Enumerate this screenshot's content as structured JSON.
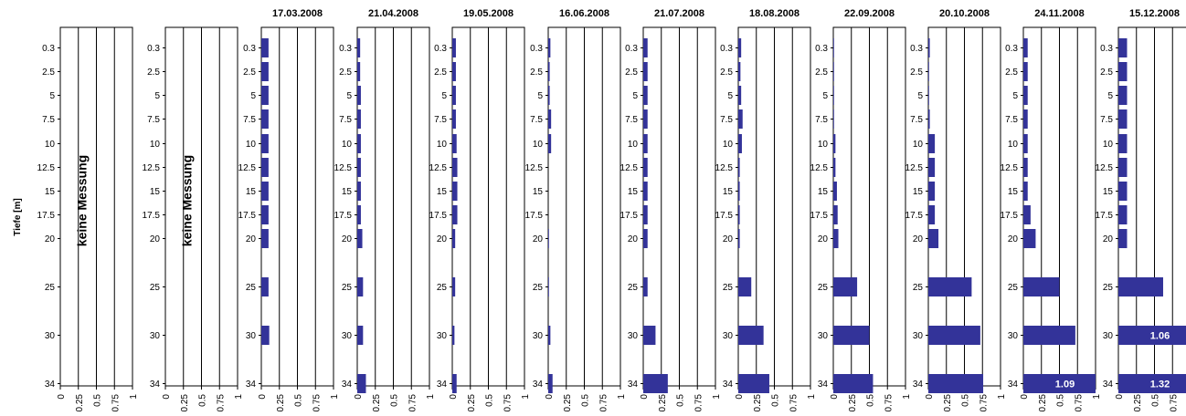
{
  "chart_data": {
    "type": "bar",
    "ylabel": "Tiefe [m]",
    "depths": [
      "0.3",
      "2.5",
      "5",
      "7.5",
      "10",
      "12.5",
      "15",
      "17.5",
      "20",
      "25",
      "30",
      "34"
    ],
    "xticks": [
      "0",
      "0.25",
      "0.5",
      "0.75",
      "1"
    ],
    "xlim": [
      0,
      1
    ],
    "bar_color": "#333399",
    "panels": [
      {
        "title": "",
        "no_data": "keine Messung",
        "values": []
      },
      {
        "title": "",
        "no_data": "keine Messung",
        "values": []
      },
      {
        "title": "17.03.2008",
        "values": [
          0.1,
          0.1,
          0.1,
          0.1,
          0.1,
          0.1,
          0.1,
          0.1,
          0.1,
          0.1,
          0.11,
          null
        ]
      },
      {
        "title": "21.04.2008",
        "values": [
          0.04,
          0.04,
          0.05,
          0.05,
          0.05,
          0.05,
          0.05,
          0.05,
          0.07,
          0.08,
          0.08,
          0.12
        ]
      },
      {
        "title": "19.05.2008",
        "values": [
          0.05,
          0.05,
          0.05,
          0.05,
          0.06,
          0.07,
          0.07,
          0.07,
          0.04,
          0.04,
          0.03,
          0.06
        ]
      },
      {
        "title": "16.06.2008",
        "values": [
          0.03,
          0.02,
          0.02,
          0.04,
          0.04,
          0.0,
          0.0,
          0.0,
          0.01,
          0.01,
          0.03,
          0.06
        ]
      },
      {
        "title": "21.07.2008",
        "values": [
          0.06,
          0.06,
          0.06,
          0.06,
          0.06,
          0.06,
          0.06,
          0.06,
          0.06,
          0.06,
          0.17,
          0.34
        ]
      },
      {
        "title": "18.08.2008",
        "values": [
          0.04,
          0.03,
          0.04,
          0.06,
          0.05,
          0.02,
          0.02,
          0.02,
          0.02,
          0.18,
          0.35,
          0.43
        ]
      },
      {
        "title": "22.09.2008",
        "values": [
          0.01,
          0.01,
          0.01,
          0.01,
          0.03,
          0.03,
          0.05,
          0.06,
          0.07,
          0.33,
          0.5,
          0.55
        ]
      },
      {
        "title": "20.10.2008",
        "values": [
          0.02,
          0.01,
          0.01,
          0.02,
          0.09,
          0.09,
          0.09,
          0.09,
          0.14,
          0.6,
          0.72,
          0.76
        ]
      },
      {
        "title": "24.11.2008",
        "values": [
          0.06,
          0.06,
          0.06,
          0.06,
          0.06,
          0.06,
          0.06,
          0.1,
          0.17,
          0.5,
          0.72,
          1.09
        ],
        "labels": {
          "11": "1.09"
        }
      },
      {
        "title": "15.12.2008",
        "values": [
          0.12,
          0.12,
          0.12,
          0.12,
          0.12,
          0.12,
          0.12,
          0.12,
          0.12,
          0.62,
          1.06,
          1.32
        ],
        "labels": {
          "10": "1.06",
          "11": "1.32"
        }
      }
    ]
  }
}
